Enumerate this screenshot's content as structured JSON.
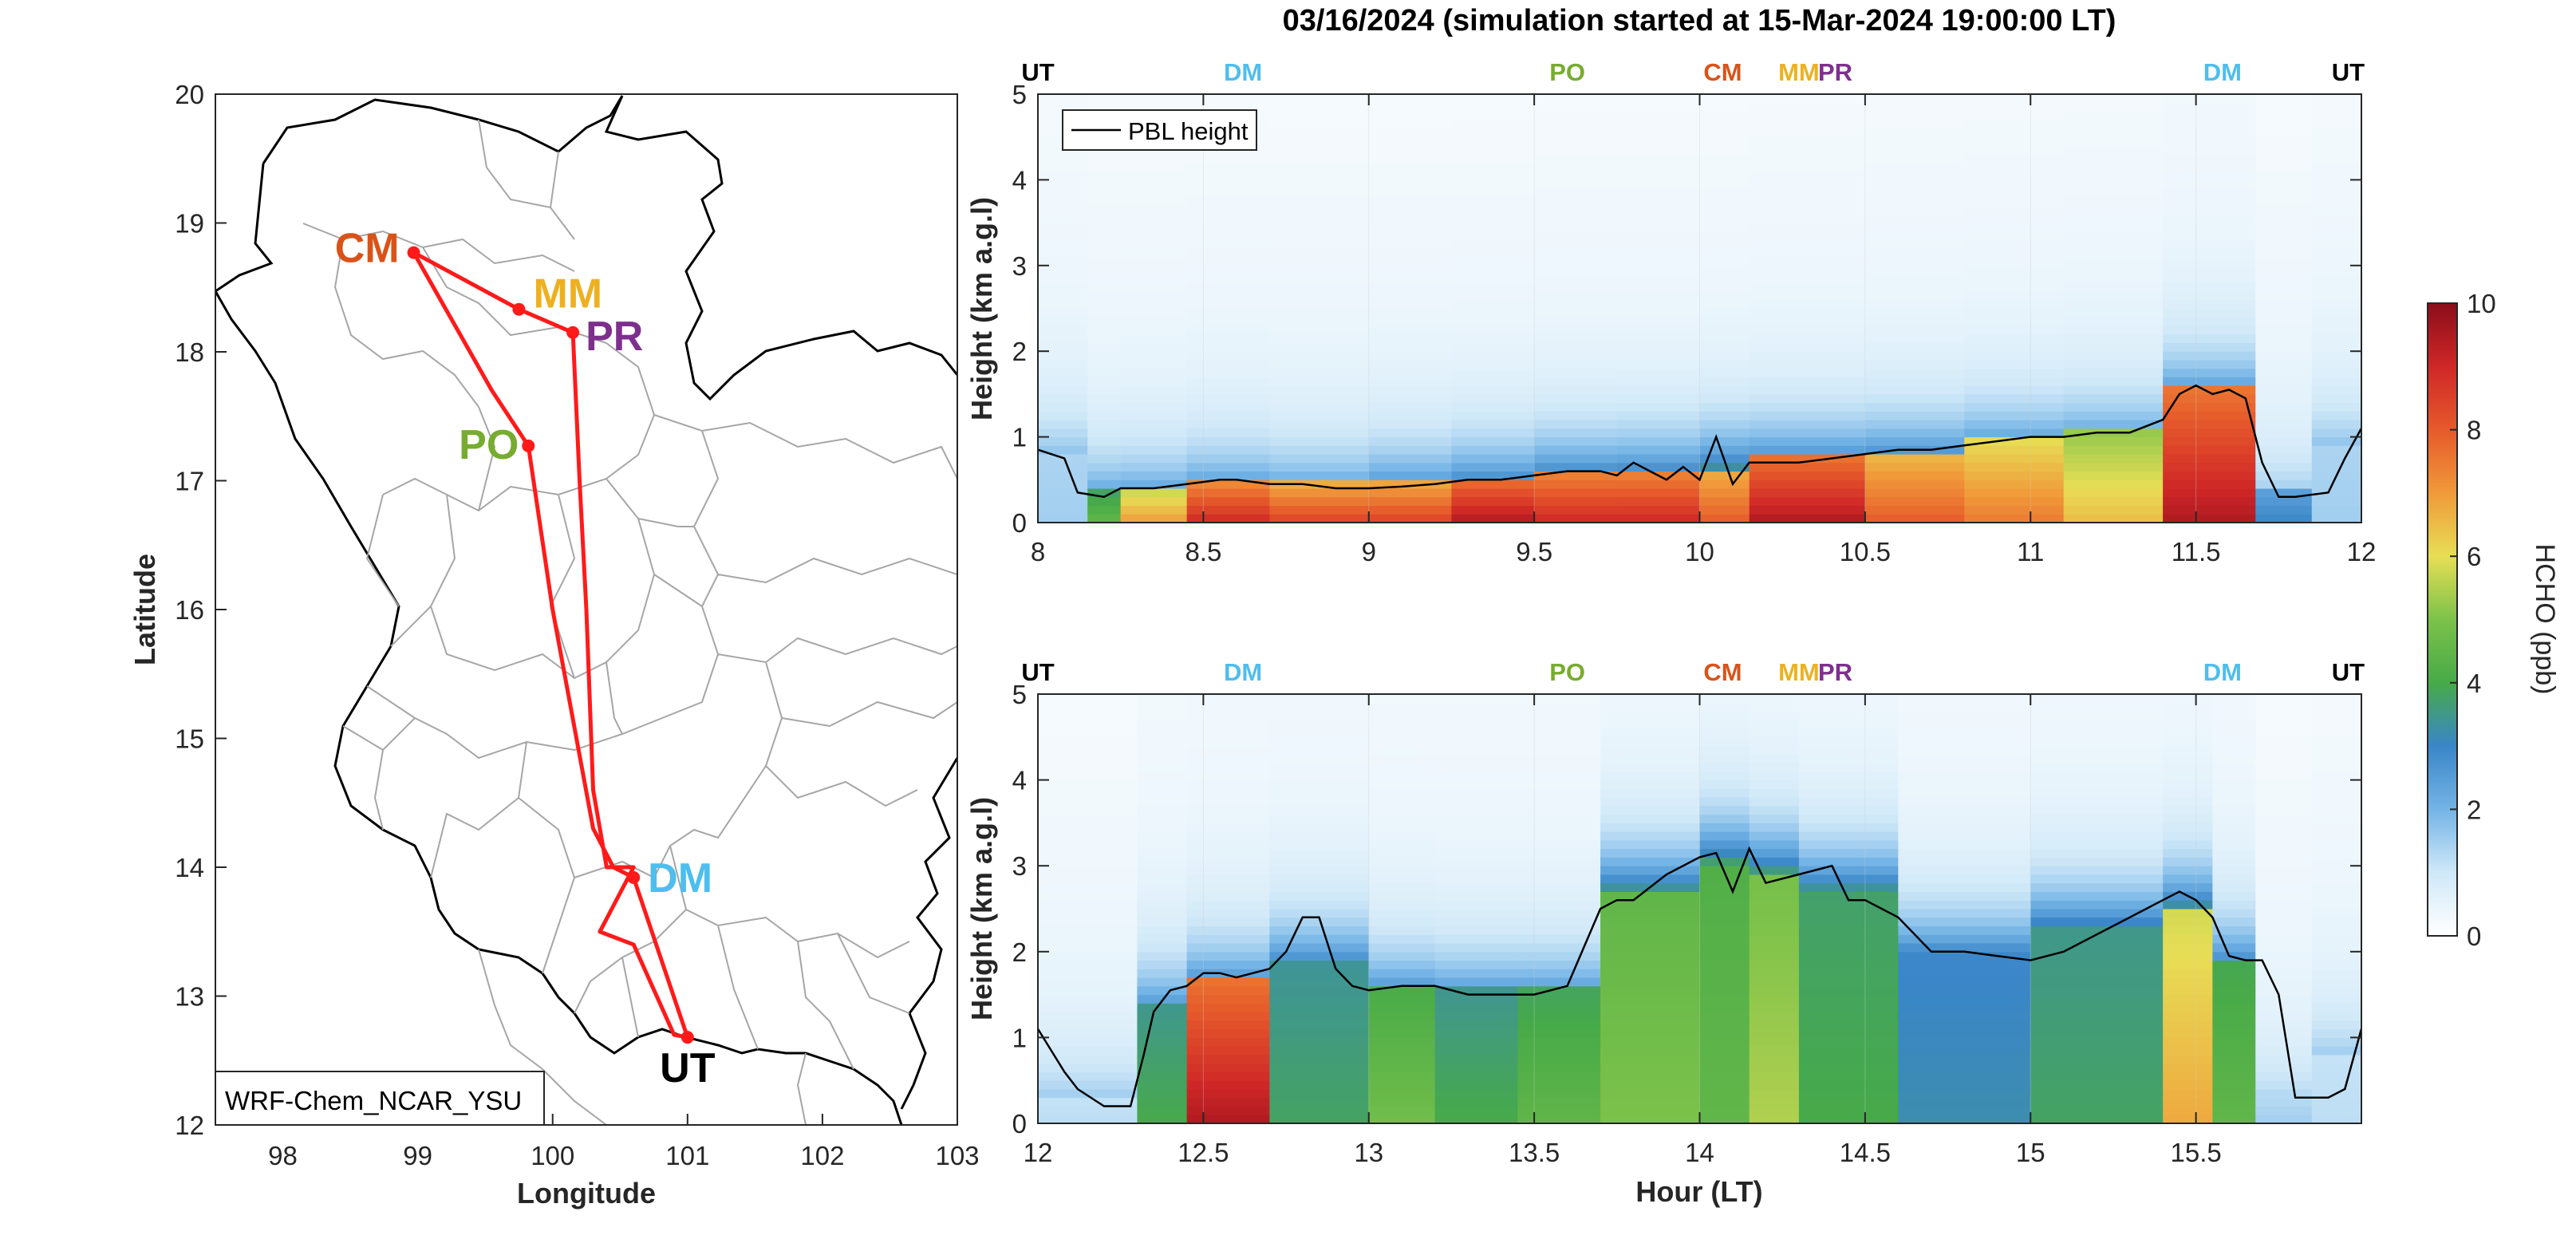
{
  "title": "03/16/2024 (simulation started at 15-Mar-2024 19:00:00 LT)",
  "colors": {
    "CM": "#d95319",
    "MM": "#edb120",
    "PR": "#7e2f8e",
    "PO": "#77ac30",
    "DM": "#4dbeee",
    "UT": "#000000",
    "route": "#ff1a1a",
    "pbl": "#000000"
  },
  "map": {
    "model_label": "WRF-Chem_NCAR_YSU",
    "xlabel": "Longitude",
    "ylabel": "Latitude",
    "xticks": [
      "98",
      "99",
      "100",
      "101",
      "102",
      "103"
    ],
    "yticks": [
      "12",
      "13",
      "14",
      "15",
      "16",
      "17",
      "18",
      "19",
      "20"
    ],
    "xlim": [
      97.5,
      103
    ],
    "ylim": [
      12,
      20
    ],
    "sites": [
      {
        "code": "CM",
        "lon": 98.97,
        "lat": 18.77
      },
      {
        "code": "MM",
        "lon": 99.75,
        "lat": 18.33
      },
      {
        "code": "PR",
        "lon": 100.15,
        "lat": 18.15
      },
      {
        "code": "PO",
        "lon": 99.82,
        "lat": 17.27
      },
      {
        "code": "DM",
        "lon": 100.6,
        "lat": 13.92
      },
      {
        "code": "UT",
        "lon": 101.0,
        "lat": 12.68
      }
    ],
    "route": [
      [
        101.0,
        12.68
      ],
      [
        100.6,
        13.92
      ],
      [
        100.45,
        14.0
      ],
      [
        100.3,
        14.3
      ],
      [
        100.0,
        16.0
      ],
      [
        99.82,
        17.27
      ],
      [
        99.55,
        17.7
      ],
      [
        98.97,
        18.77
      ],
      [
        99.75,
        18.33
      ],
      [
        100.15,
        18.15
      ],
      [
        100.2,
        17.0
      ],
      [
        100.25,
        16.0
      ],
      [
        100.3,
        14.6
      ],
      [
        100.4,
        14.0
      ],
      [
        100.6,
        14.0
      ],
      [
        100.45,
        13.7
      ],
      [
        100.35,
        13.5
      ],
      [
        100.6,
        13.4
      ],
      [
        100.9,
        12.7
      ],
      [
        101.0,
        12.68
      ]
    ]
  },
  "chart_data": [
    {
      "type": "heatmap",
      "name": "",
      "xlabel": "",
      "ylabel": "Height (km a.g.l)",
      "xlim": [
        8,
        12
      ],
      "ylim": [
        0,
        5
      ],
      "xticks": [
        "8",
        "8.5",
        "9",
        "9.5",
        "10",
        "10.5",
        "11",
        "11.5",
        "12"
      ],
      "yticks": [
        "0",
        "1",
        "2",
        "3",
        "4",
        "5"
      ],
      "legend": {
        "label": "PBL height",
        "placement": "top-left"
      },
      "site_markers": [
        {
          "code": "UT",
          "hour": 8.0
        },
        {
          "code": "DM",
          "hour": 8.62
        },
        {
          "code": "PO",
          "hour": 9.6
        },
        {
          "code": "CM",
          "hour": 10.07
        },
        {
          "code": "MM",
          "hour": 10.3
        },
        {
          "code": "PR",
          "hour": 10.41
        },
        {
          "code": "DM",
          "hour": 11.58
        },
        {
          "code": "UT",
          "hour": 11.96
        }
      ],
      "pbl_height": {
        "x": [
          8.0,
          8.08,
          8.12,
          8.2,
          8.25,
          8.35,
          8.45,
          8.55,
          8.6,
          8.7,
          8.8,
          8.9,
          9.0,
          9.1,
          9.2,
          9.3,
          9.4,
          9.5,
          9.6,
          9.7,
          9.75,
          9.8,
          9.85,
          9.9,
          9.95,
          10.0,
          10.05,
          10.1,
          10.15,
          10.2,
          10.3,
          10.4,
          10.5,
          10.6,
          10.7,
          10.8,
          10.9,
          11.0,
          11.1,
          11.2,
          11.3,
          11.4,
          11.45,
          11.5,
          11.55,
          11.6,
          11.65,
          11.7,
          11.75,
          11.8,
          11.9,
          11.95,
          12.0
        ],
        "y": [
          0.85,
          0.75,
          0.35,
          0.3,
          0.4,
          0.4,
          0.45,
          0.5,
          0.5,
          0.45,
          0.45,
          0.4,
          0.4,
          0.42,
          0.45,
          0.5,
          0.5,
          0.55,
          0.6,
          0.6,
          0.55,
          0.7,
          0.6,
          0.5,
          0.65,
          0.5,
          1.0,
          0.45,
          0.7,
          0.7,
          0.7,
          0.75,
          0.8,
          0.85,
          0.85,
          0.9,
          0.95,
          1.0,
          1.0,
          1.05,
          1.05,
          1.2,
          1.5,
          1.6,
          1.5,
          1.55,
          1.45,
          0.7,
          0.3,
          0.3,
          0.35,
          0.75,
          1.1
        ]
      },
      "hcho_columns": [
        {
          "x0": 8.0,
          "x1": 8.15,
          "pbl": 0.8,
          "surface": 1.5,
          "top": 1.0
        },
        {
          "x0": 8.15,
          "x1": 8.25,
          "pbl": 0.35,
          "surface": 4.5,
          "top": 1.6
        },
        {
          "x0": 8.25,
          "x1": 8.45,
          "pbl": 0.4,
          "surface": 7.0,
          "top": 1.5
        },
        {
          "x0": 8.45,
          "x1": 8.7,
          "pbl": 0.5,
          "surface": 9.0,
          "top": 1.5
        },
        {
          "x0": 8.7,
          "x1": 9.0,
          "pbl": 0.45,
          "surface": 8.5,
          "top": 1.5
        },
        {
          "x0": 9.0,
          "x1": 9.25,
          "pbl": 0.45,
          "surface": 8.5,
          "top": 1.9
        },
        {
          "x0": 9.25,
          "x1": 9.5,
          "pbl": 0.5,
          "surface": 9.5,
          "top": 2.1
        },
        {
          "x0": 9.5,
          "x1": 9.75,
          "pbl": 0.6,
          "surface": 9.0,
          "top": 2.1
        },
        {
          "x0": 9.75,
          "x1": 10.0,
          "pbl": 0.6,
          "surface": 9.0,
          "top": 2.2
        },
        {
          "x0": 10.0,
          "x1": 10.15,
          "pbl": 0.6,
          "surface": 8.0,
          "top": 2.8
        },
        {
          "x0": 10.15,
          "x1": 10.5,
          "pbl": 0.75,
          "surface": 9.5,
          "top": 2.1
        },
        {
          "x0": 10.5,
          "x1": 10.8,
          "pbl": 0.85,
          "surface": 8.0,
          "top": 1.8
        },
        {
          "x0": 10.8,
          "x1": 11.1,
          "pbl": 0.95,
          "surface": 7.5,
          "top": 1.7
        },
        {
          "x0": 11.1,
          "x1": 11.4,
          "pbl": 1.05,
          "surface": 6.5,
          "top": 1.5
        },
        {
          "x0": 11.4,
          "x1": 11.68,
          "pbl": 1.55,
          "surface": 9.5,
          "top": 1.8
        },
        {
          "x0": 11.68,
          "x1": 11.85,
          "pbl": 0.35,
          "surface": 3.0,
          "top": 0.8
        },
        {
          "x0": 11.85,
          "x1": 12.0,
          "pbl": 0.9,
          "surface": 1.5,
          "top": 1.0
        }
      ]
    },
    {
      "type": "heatmap",
      "name": "",
      "xlabel": "Hour (LT)",
      "ylabel": "Height (km a.g.l)",
      "xlim": [
        12,
        16
      ],
      "ylim": [
        0,
        5
      ],
      "xticks": [
        "12",
        "12.5",
        "13",
        "13.5",
        "14",
        "14.5",
        "15",
        "15.5"
      ],
      "yticks": [
        "0",
        "1",
        "2",
        "3",
        "4",
        "5"
      ],
      "site_markers": [
        {
          "code": "UT",
          "hour": 12.0
        },
        {
          "code": "DM",
          "hour": 12.62
        },
        {
          "code": "PO",
          "hour": 13.6
        },
        {
          "code": "CM",
          "hour": 14.07
        },
        {
          "code": "MM",
          "hour": 14.3
        },
        {
          "code": "PR",
          "hour": 14.41
        },
        {
          "code": "DM",
          "hour": 15.58
        },
        {
          "code": "UT",
          "hour": 15.96
        }
      ],
      "pbl_height": {
        "x": [
          12.0,
          12.08,
          12.12,
          12.2,
          12.28,
          12.32,
          12.35,
          12.4,
          12.45,
          12.5,
          12.55,
          12.6,
          12.7,
          12.75,
          12.8,
          12.85,
          12.9,
          12.95,
          13.0,
          13.1,
          13.2,
          13.3,
          13.4,
          13.5,
          13.6,
          13.7,
          13.75,
          13.8,
          13.9,
          14.0,
          14.05,
          14.1,
          14.15,
          14.2,
          14.3,
          14.4,
          14.45,
          14.5,
          14.6,
          14.7,
          14.8,
          14.9,
          15.0,
          15.1,
          15.2,
          15.3,
          15.4,
          15.45,
          15.5,
          15.55,
          15.6,
          15.65,
          15.7,
          15.75,
          15.8,
          15.9,
          15.95,
          16.0
        ],
        "y": [
          1.1,
          0.6,
          0.4,
          0.2,
          0.2,
          0.8,
          1.3,
          1.55,
          1.6,
          1.75,
          1.75,
          1.7,
          1.8,
          2.0,
          2.4,
          2.4,
          1.8,
          1.6,
          1.55,
          1.6,
          1.6,
          1.5,
          1.5,
          1.5,
          1.6,
          2.5,
          2.6,
          2.6,
          2.9,
          3.1,
          3.15,
          2.7,
          3.2,
          2.8,
          2.9,
          3.0,
          2.6,
          2.6,
          2.4,
          2.0,
          2.0,
          1.95,
          1.9,
          2.0,
          2.2,
          2.4,
          2.6,
          2.7,
          2.6,
          2.4,
          1.95,
          1.9,
          1.9,
          1.5,
          0.3,
          0.3,
          0.4,
          1.1
        ]
      },
      "hcho_columns": [
        {
          "x0": 12.0,
          "x1": 12.3,
          "pbl": 0.3,
          "surface": 1.2,
          "top": 0.8
        },
        {
          "x0": 12.3,
          "x1": 12.45,
          "pbl": 1.4,
          "surface": 4.0,
          "top": 1.8
        },
        {
          "x0": 12.45,
          "x1": 12.7,
          "pbl": 1.7,
          "surface": 9.5,
          "top": 1.8
        },
        {
          "x0": 12.7,
          "x1": 13.0,
          "pbl": 1.9,
          "surface": 3.8,
          "top": 2.1
        },
        {
          "x0": 13.0,
          "x1": 13.2,
          "pbl": 1.6,
          "surface": 4.8,
          "top": 1.8
        },
        {
          "x0": 13.2,
          "x1": 13.45,
          "pbl": 1.55,
          "surface": 4.0,
          "top": 1.8
        },
        {
          "x0": 13.45,
          "x1": 13.7,
          "pbl": 1.55,
          "surface": 4.5,
          "top": 1.8
        },
        {
          "x0": 13.7,
          "x1": 14.0,
          "pbl": 2.7,
          "surface": 5.0,
          "top": 2.9
        },
        {
          "x0": 14.0,
          "x1": 14.15,
          "pbl": 3.0,
          "surface": 4.5,
          "top": 3.3
        },
        {
          "x0": 14.15,
          "x1": 14.3,
          "pbl": 2.9,
          "surface": 5.5,
          "top": 3.1
        },
        {
          "x0": 14.3,
          "x1": 14.6,
          "pbl": 2.7,
          "surface": 4.0,
          "top": 2.9
        },
        {
          "x0": 14.6,
          "x1": 15.0,
          "pbl": 2.0,
          "surface": 3.2,
          "top": 2.2
        },
        {
          "x0": 15.0,
          "x1": 15.4,
          "pbl": 2.3,
          "surface": 3.8,
          "top": 2.5
        },
        {
          "x0": 15.4,
          "x1": 15.55,
          "pbl": 2.5,
          "surface": 6.8,
          "top": 2.8
        },
        {
          "x0": 15.55,
          "x1": 15.68,
          "pbl": 1.9,
          "surface": 4.5,
          "top": 2.1
        },
        {
          "x0": 15.68,
          "x1": 15.85,
          "pbl": 0.3,
          "surface": 1.5,
          "top": 0.6
        },
        {
          "x0": 15.85,
          "x1": 16.0,
          "pbl": 0.8,
          "surface": 1.2,
          "top": 0.8
        }
      ]
    }
  ],
  "colorbar": {
    "label": "HCHO (ppb)",
    "ticks": [
      "0",
      "2",
      "4",
      "6",
      "8",
      "10"
    ],
    "range": [
      0,
      10
    ],
    "stops": [
      [
        0,
        "#ffffff"
      ],
      [
        1,
        "#cfe8f8"
      ],
      [
        2,
        "#74b4e6"
      ],
      [
        3,
        "#3a86c8"
      ],
      [
        4,
        "#47aa48"
      ],
      [
        5,
        "#7cc24a"
      ],
      [
        6,
        "#e7de55"
      ],
      [
        7,
        "#f09a3a"
      ],
      [
        8,
        "#e65a2b"
      ],
      [
        9,
        "#cf2727"
      ],
      [
        10,
        "#8b0d1a"
      ]
    ]
  }
}
